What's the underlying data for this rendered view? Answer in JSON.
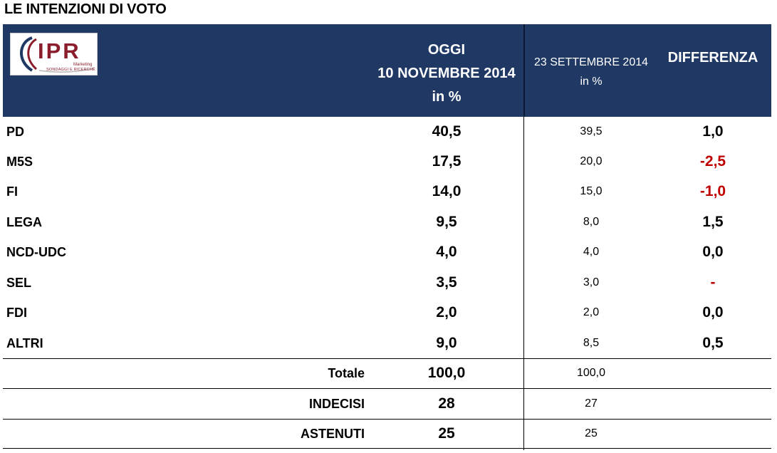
{
  "title": "LE INTENZIONI DI VOTO",
  "logo": {
    "name": "IPR",
    "line1": "Marketing",
    "line2": "SONDAGGI E RICERCHE"
  },
  "headers": {
    "oggi_line1": "OGGI",
    "oggi_line2": "10 NOVEMBRE 2014",
    "oggi_line3": "in %",
    "sett_line1": "23 SETTEMBRE 2014",
    "sett_line2": "in %",
    "diff": "DIFFERENZA"
  },
  "rows": [
    {
      "party": "PD",
      "oggi": "40,5",
      "sett": "39,5",
      "diff": "1,0"
    },
    {
      "party": "M5S",
      "oggi": "17,5",
      "sett": "20,0",
      "diff": "-2,5"
    },
    {
      "party": "FI",
      "oggi": "14,0",
      "sett": "15,0",
      "diff": "-1,0"
    },
    {
      "party": "LEGA",
      "oggi": "9,5",
      "sett": "8,0",
      "diff": "1,5"
    },
    {
      "party": "NCD-UDC",
      "oggi": "4,0",
      "sett": "4,0",
      "diff": "0,0"
    },
    {
      "party": "SEL",
      "oggi": "3,5",
      "sett": "3,0",
      "diff": "-"
    },
    {
      "party": "FDI",
      "oggi": "2,0",
      "sett": "2,0",
      "diff": "0,0"
    },
    {
      "party": "ALTRI",
      "oggi": "9,0",
      "sett": "8,5",
      "diff": "0,5"
    }
  ],
  "summary": [
    {
      "label": "Totale",
      "oggi": "100,0",
      "sett": "100,0"
    },
    {
      "label": "INDECISI",
      "oggi": "28",
      "sett": "27"
    },
    {
      "label": "ASTENUTI",
      "oggi": "25",
      "sett": "25"
    }
  ],
  "colors": {
    "header_bg": "#1f3864",
    "negative": "#c00000",
    "logo": "#8a1c2b"
  }
}
